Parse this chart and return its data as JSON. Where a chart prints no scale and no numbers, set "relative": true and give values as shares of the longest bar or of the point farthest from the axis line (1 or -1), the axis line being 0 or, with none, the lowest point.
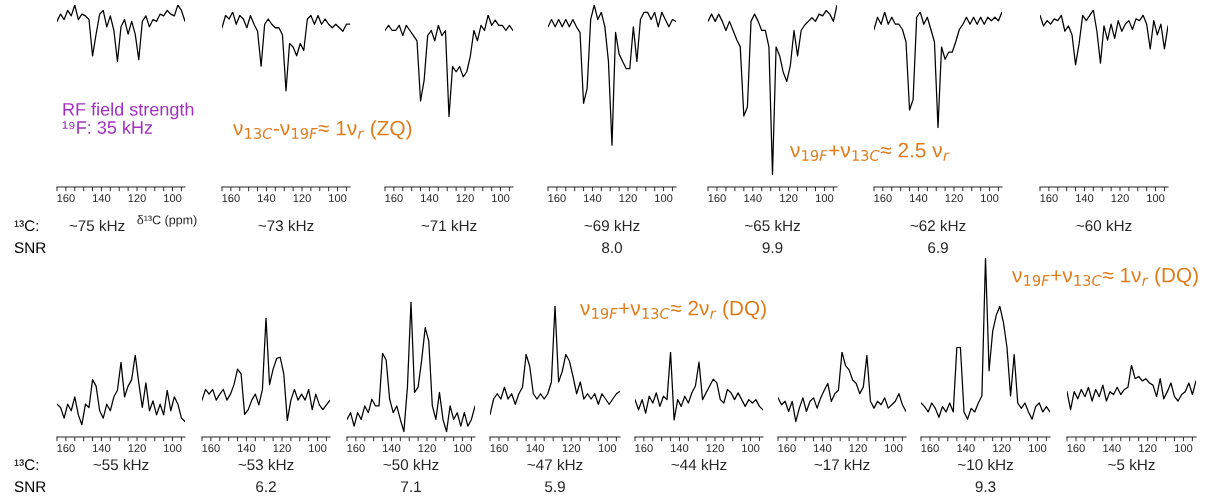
{
  "chart_data": [
    {
      "type": "line",
      "relative": true,
      "title": "~75 kHz",
      "xlabel": "δ¹³C (ppm)",
      "xlim": [
        165,
        93
      ],
      "annotations": [
        "RF field strength\n¹⁹F: 35 kHz",
        "ν$_{13C}$-ν$_{19F}$≈ 1ν$_{r}$ (ZQ)",
        "¹³C:",
        "SNR"
      ],
      "xticks": [
        {
          "value": 165,
          "label": null
        },
        160,
        {
          "value": 155,
          "label": null
        },
        {
          "value": 150,
          "label": null
        },
        {
          "value": 145,
          "label": null
        },
        140,
        {
          "value": 135,
          "label": null
        },
        {
          "value": 130,
          "label": null
        },
        {
          "value": 125,
          "label": null
        },
        120,
        {
          "value": 115,
          "label": null
        },
        {
          "value": 110,
          "label": null
        },
        {
          "value": 105,
          "label": null
        },
        100,
        {
          "value": 95,
          "label": null
        }
      ],
      "x": [
        165,
        163,
        161,
        159,
        157,
        155,
        153,
        151,
        149,
        147,
        145,
        143,
        141,
        139,
        137,
        135,
        133,
        131,
        129,
        127,
        125,
        123,
        121,
        119,
        117,
        115,
        113,
        111,
        109,
        107,
        105,
        103,
        101,
        99,
        97,
        95,
        93
      ],
      "series": [
        {
          "color": "#000000",
          "values": [
            0.91,
            0.95,
            0.92,
            0.97,
            0.94,
            1.0,
            0.92,
            0.95,
            0.94,
            0.92,
            0.72,
            0.84,
            0.95,
            0.97,
            0.88,
            0.94,
            0.86,
            0.69,
            0.88,
            0.92,
            0.84,
            0.91,
            0.84,
            0.7,
            0.91,
            0.94,
            0.88,
            0.92,
            0.91,
            0.95,
            0.94,
            0.97,
            0.95,
            0.94,
            1.0,
            0.97,
            0.91
          ]
        }
      ]
    },
    {
      "type": "line",
      "relative": true,
      "title": "~73 kHz",
      "xlim": [
        165,
        93
      ],
      "xticks": [
        {
          "value": 165,
          "label": null
        },
        160,
        {
          "value": 155,
          "label": null
        },
        {
          "value": 150,
          "label": null
        },
        {
          "value": 145,
          "label": null
        },
        140,
        {
          "value": 135,
          "label": null
        },
        {
          "value": 130,
          "label": null
        },
        {
          "value": 125,
          "label": null
        },
        120,
        {
          "value": 115,
          "label": null
        },
        {
          "value": 110,
          "label": null
        },
        {
          "value": 105,
          "label": null
        },
        100,
        {
          "value": 95,
          "label": null
        }
      ],
      "x": [
        165,
        163,
        161,
        159,
        157,
        155,
        153,
        151,
        149,
        147,
        145,
        143,
        141,
        139,
        137,
        135,
        133,
        131,
        129,
        127,
        125,
        123,
        121,
        119,
        117,
        115,
        113,
        111,
        109,
        107,
        105,
        103,
        101,
        99,
        97,
        95,
        93
      ],
      "series": [
        {
          "color": "#000000",
          "values": [
            0.91,
            0.98,
            0.96,
            1.0,
            0.93,
            0.98,
            0.96,
            0.91,
            0.98,
            0.93,
            0.89,
            0.69,
            0.93,
            0.96,
            0.93,
            0.91,
            0.91,
            0.87,
            0.55,
            0.82,
            0.8,
            0.75,
            0.82,
            0.78,
            0.96,
            0.98,
            0.93,
            0.98,
            0.93,
            0.96,
            0.93,
            0.91,
            0.93,
            0.91,
            0.89,
            0.93,
            0.93
          ]
        }
      ]
    },
    {
      "type": "line",
      "relative": true,
      "title": "~71 kHz",
      "xlim": [
        165,
        93
      ],
      "xticks": [
        {
          "value": 165,
          "label": null
        },
        160,
        {
          "value": 155,
          "label": null
        },
        {
          "value": 150,
          "label": null
        },
        {
          "value": 145,
          "label": null
        },
        140,
        {
          "value": 135,
          "label": null
        },
        {
          "value": 130,
          "label": null
        },
        {
          "value": 125,
          "label": null
        },
        120,
        {
          "value": 115,
          "label": null
        },
        {
          "value": 110,
          "label": null
        },
        {
          "value": 105,
          "label": null
        },
        100,
        {
          "value": 95,
          "label": null
        }
      ],
      "x": [
        165,
        163,
        161,
        159,
        157,
        155,
        153,
        151,
        149,
        147,
        145,
        143,
        141,
        139,
        137,
        135,
        133,
        131,
        129,
        127,
        125,
        123,
        121,
        119,
        117,
        115,
        113,
        111,
        109,
        107,
        105,
        103,
        101,
        99,
        97,
        95,
        93
      ],
      "series": [
        {
          "color": "#000000",
          "values": [
            0.91,
            0.94,
            0.91,
            0.91,
            0.94,
            0.88,
            0.94,
            0.91,
            0.88,
            0.85,
            0.5,
            0.62,
            0.88,
            0.91,
            0.85,
            0.94,
            0.88,
            0.91,
            0.41,
            0.7,
            0.67,
            0.7,
            0.64,
            0.67,
            0.76,
            0.91,
            0.85,
            0.94,
            0.91,
            1.0,
            0.94,
            0.97,
            0.94,
            0.94,
            0.91,
            0.94,
            0.91
          ]
        }
      ]
    },
    {
      "type": "line",
      "relative": true,
      "title": "~69 kHz",
      "subtitle": "8.0",
      "xlim": [
        165,
        93
      ],
      "xticks": [
        {
          "value": 165,
          "label": null
        },
        160,
        {
          "value": 155,
          "label": null
        },
        {
          "value": 150,
          "label": null
        },
        {
          "value": 145,
          "label": null
        },
        140,
        {
          "value": 135,
          "label": null
        },
        {
          "value": 130,
          "label": null
        },
        {
          "value": 125,
          "label": null
        },
        120,
        {
          "value": 115,
          "label": null
        },
        {
          "value": 110,
          "label": null
        },
        {
          "value": 105,
          "label": null
        },
        100,
        {
          "value": 95,
          "label": null
        }
      ],
      "x": [
        165,
        163,
        161,
        159,
        157,
        155,
        153,
        151,
        149,
        147,
        145,
        143,
        141,
        139,
        137,
        135,
        133,
        131,
        129,
        127,
        125,
        123,
        121,
        119,
        117,
        115,
        113,
        111,
        109,
        107,
        105,
        103,
        101,
        99,
        97,
        95,
        93
      ],
      "series": [
        {
          "color": "#000000",
          "values": [
            0.88,
            0.92,
            0.88,
            0.92,
            0.88,
            0.92,
            0.88,
            0.92,
            0.88,
            0.85,
            0.46,
            0.54,
            0.92,
            1.0,
            0.92,
            0.96,
            0.88,
            0.69,
            0.23,
            0.85,
            0.73,
            0.69,
            0.65,
            0.65,
            0.88,
            0.69,
            0.92,
            0.96,
            0.96,
            0.92,
            0.96,
            0.88,
            0.96,
            0.92,
            0.88,
            0.92,
            0.91
          ]
        }
      ]
    },
    {
      "type": "line",
      "relative": true,
      "title": "~65 kHz",
      "subtitle": "9.9",
      "xlim": [
        165,
        93
      ],
      "annotations": [
        "ν$_{19F}$+ν$_{13C}$≈ 2.5 ν$_{r}$"
      ],
      "xticks": [
        {
          "value": 165,
          "label": null
        },
        160,
        {
          "value": 155,
          "label": null
        },
        {
          "value": 150,
          "label": null
        },
        {
          "value": 145,
          "label": null
        },
        140,
        {
          "value": 135,
          "label": null
        },
        {
          "value": 130,
          "label": null
        },
        {
          "value": 125,
          "label": null
        },
        120,
        {
          "value": 115,
          "label": null
        },
        {
          "value": 110,
          "label": null
        },
        {
          "value": 105,
          "label": null
        },
        100,
        {
          "value": 95,
          "label": null
        }
      ],
      "x": [
        165,
        163,
        161,
        159,
        157,
        155,
        153,
        151,
        149,
        147,
        145,
        143,
        141,
        139,
        137,
        135,
        133,
        131,
        129,
        127,
        125,
        123,
        121,
        119,
        117,
        115,
        113,
        111,
        109,
        107,
        105,
        103,
        101,
        99,
        97,
        95,
        93
      ],
      "series": [
        {
          "color": "#000000",
          "values": [
            0.91,
            0.95,
            0.91,
            0.95,
            0.91,
            0.86,
            0.91,
            0.86,
            0.81,
            0.77,
            0.39,
            0.44,
            0.91,
            0.95,
            0.91,
            0.86,
            0.86,
            0.77,
            0.07,
            0.77,
            0.72,
            0.63,
            0.58,
            0.67,
            0.86,
            0.72,
            0.86,
            0.89,
            0.91,
            0.93,
            0.91,
            0.95,
            0.94,
            0.97,
            0.95,
            0.91,
            1.0
          ]
        }
      ]
    },
    {
      "type": "line",
      "relative": true,
      "title": "~62 kHz",
      "subtitle": "6.9",
      "xlim": [
        165,
        93
      ],
      "xticks": [
        {
          "value": 165,
          "label": null
        },
        160,
        {
          "value": 155,
          "label": null
        },
        {
          "value": 150,
          "label": null
        },
        {
          "value": 145,
          "label": null
        },
        140,
        {
          "value": 135,
          "label": null
        },
        {
          "value": 130,
          "label": null
        },
        {
          "value": 125,
          "label": null
        },
        120,
        {
          "value": 115,
          "label": null
        },
        {
          "value": 110,
          "label": null
        },
        {
          "value": 105,
          "label": null
        },
        100,
        {
          "value": 95,
          "label": null
        }
      ],
      "x": [
        165,
        163,
        161,
        159,
        157,
        155,
        153,
        151,
        149,
        147,
        145,
        143,
        141,
        139,
        137,
        135,
        133,
        131,
        129,
        127,
        125,
        123,
        121,
        119,
        117,
        115,
        113,
        111,
        109,
        107,
        105,
        103,
        101,
        99,
        97,
        95,
        93
      ],
      "series": [
        {
          "color": "#000000",
          "values": [
            0.9,
            0.97,
            0.93,
            1.0,
            0.93,
            0.97,
            0.93,
            0.93,
            0.9,
            0.83,
            0.44,
            0.5,
            0.97,
            1.0,
            0.93,
            0.97,
            0.9,
            0.83,
            0.34,
            0.8,
            0.73,
            0.77,
            0.77,
            0.83,
            0.9,
            0.93,
            0.97,
            0.93,
            0.97,
            0.93,
            0.97,
            0.93,
            0.97,
            0.95,
            0.97,
            0.95,
            1.0
          ]
        }
      ]
    },
    {
      "type": "line",
      "relative": true,
      "title": "~60 kHz",
      "xlim": [
        165,
        93
      ],
      "xticks": [
        {
          "value": 165,
          "label": null
        },
        160,
        {
          "value": 155,
          "label": null
        },
        {
          "value": 150,
          "label": null
        },
        {
          "value": 145,
          "label": null
        },
        140,
        {
          "value": 135,
          "label": null
        },
        {
          "value": 130,
          "label": null
        },
        {
          "value": 125,
          "label": null
        },
        120,
        {
          "value": 115,
          "label": null
        },
        {
          "value": 110,
          "label": null
        },
        {
          "value": 105,
          "label": null
        },
        100,
        {
          "value": 95,
          "label": null
        }
      ],
      "x": [
        165,
        163,
        161,
        159,
        157,
        155,
        153,
        151,
        149,
        147,
        145,
        143,
        141,
        139,
        137,
        135,
        133,
        131,
        129,
        127,
        125,
        123,
        121,
        119,
        117,
        115,
        113,
        111,
        109,
        107,
        105,
        103,
        101,
        99,
        97,
        95,
        93
      ],
      "series": [
        {
          "color": "#000000",
          "values": [
            0.97,
            0.91,
            0.94,
            0.92,
            0.95,
            0.94,
            0.97,
            0.88,
            0.91,
            0.86,
            0.69,
            0.81,
            0.97,
            0.94,
            0.97,
            1.0,
            0.88,
            0.7,
            0.91,
            0.83,
            0.92,
            0.84,
            0.94,
            0.88,
            0.92,
            0.94,
            0.89,
            0.95,
            0.94,
            0.97,
            0.92,
            0.78,
            0.94,
            0.86,
            0.92,
            0.78,
            0.91
          ]
        }
      ]
    },
    {
      "type": "line",
      "relative": true,
      "title": "~55 kHz",
      "xlim": [
        165,
        93
      ],
      "annotations": [
        "¹³C:",
        "SNR"
      ],
      "xticks": [
        {
          "value": 165,
          "label": null
        },
        160,
        {
          "value": 155,
          "label": null
        },
        {
          "value": 150,
          "label": null
        },
        {
          "value": 145,
          "label": null
        },
        140,
        {
          "value": 135,
          "label": null
        },
        {
          "value": 130,
          "label": null
        },
        {
          "value": 125,
          "label": null
        },
        120,
        {
          "value": 115,
          "label": null
        },
        {
          "value": 110,
          "label": null
        },
        {
          "value": 105,
          "label": null
        },
        100,
        {
          "value": 95,
          "label": null
        }
      ],
      "x": [
        165,
        163,
        161,
        159,
        157,
        155,
        153,
        151,
        149,
        147,
        145,
        143,
        141,
        139,
        137,
        135,
        133,
        131,
        129,
        127,
        125,
        123,
        121,
        119,
        117,
        115,
        113,
        111,
        109,
        107,
        105,
        103,
        101,
        99,
        97,
        95,
        93
      ],
      "series": [
        {
          "color": "#000000",
          "values": [
            0.4,
            0.36,
            0.23,
            0.4,
            0.32,
            0.49,
            0.27,
            0.15,
            0.4,
            0.36,
            0.7,
            0.62,
            0.32,
            0.23,
            0.4,
            0.32,
            0.49,
            0.57,
            0.91,
            0.49,
            0.62,
            0.7,
            1.0,
            0.66,
            0.36,
            0.66,
            0.32,
            0.44,
            0.27,
            0.4,
            0.27,
            0.57,
            0.32,
            0.49,
            0.4,
            0.23,
            0.19
          ]
        }
      ]
    },
    {
      "type": "line",
      "relative": true,
      "title": "~53 kHz",
      "subtitle": "6.2",
      "xlim": [
        165,
        93
      ],
      "xticks": [
        {
          "value": 165,
          "label": null
        },
        160,
        {
          "value": 155,
          "label": null
        },
        {
          "value": 150,
          "label": null
        },
        {
          "value": 145,
          "label": null
        },
        140,
        {
          "value": 135,
          "label": null
        },
        {
          "value": 130,
          "label": null
        },
        {
          "value": 125,
          "label": null
        },
        120,
        {
          "value": 115,
          "label": null
        },
        {
          "value": 110,
          "label": null
        },
        {
          "value": 105,
          "label": null
        },
        100,
        {
          "value": 95,
          "label": null
        }
      ],
      "x": [
        165,
        163,
        161,
        159,
        157,
        155,
        153,
        151,
        149,
        147,
        145,
        143,
        141,
        139,
        137,
        135,
        133,
        131,
        129,
        127,
        125,
        123,
        121,
        119,
        117,
        115,
        113,
        111,
        109,
        107,
        105,
        103,
        101,
        99,
        97,
        95,
        93
      ],
      "series": [
        {
          "color": "#000000",
          "values": [
            0.31,
            0.4,
            0.36,
            0.4,
            0.31,
            0.36,
            0.4,
            0.31,
            0.36,
            0.44,
            0.57,
            0.53,
            0.19,
            0.23,
            0.31,
            0.36,
            0.27,
            0.4,
            1.0,
            0.44,
            0.57,
            0.66,
            0.67,
            0.53,
            0.14,
            0.31,
            0.4,
            0.31,
            0.36,
            0.31,
            0.4,
            0.23,
            0.36,
            0.27,
            0.23,
            0.27,
            0.31
          ]
        }
      ]
    },
    {
      "type": "line",
      "relative": true,
      "title": "~50 kHz",
      "subtitle": "7.1",
      "xlim": [
        165,
        93
      ],
      "xticks": [
        {
          "value": 165,
          "label": null
        },
        160,
        {
          "value": 155,
          "label": null
        },
        {
          "value": 150,
          "label": null
        },
        {
          "value": 145,
          "label": null
        },
        140,
        {
          "value": 135,
          "label": null
        },
        {
          "value": 130,
          "label": null
        },
        {
          "value": 125,
          "label": null
        },
        120,
        {
          "value": 115,
          "label": null
        },
        {
          "value": 110,
          "label": null
        },
        {
          "value": 105,
          "label": null
        },
        100,
        {
          "value": 95,
          "label": null
        }
      ],
      "x": [
        165,
        163,
        161,
        159,
        157,
        155,
        153,
        151,
        149,
        147,
        145,
        143,
        141,
        139,
        137,
        135,
        133,
        131,
        129,
        127,
        125,
        123,
        121,
        119,
        117,
        115,
        113,
        111,
        109,
        107,
        105,
        103,
        101,
        99,
        97,
        95,
        93
      ],
      "series": [
        {
          "color": "#000000",
          "values": [
            0.13,
            0.18,
            0.08,
            0.18,
            0.13,
            0.23,
            0.18,
            0.28,
            0.23,
            0.23,
            0.62,
            0.57,
            0.28,
            0.18,
            0.23,
            0.13,
            0.04,
            0.37,
            1.0,
            0.33,
            0.37,
            0.57,
            0.81,
            0.71,
            0.23,
            0.13,
            0.33,
            0.13,
            0.04,
            0.23,
            0.13,
            0.18,
            0.08,
            0.18,
            0.08,
            0.13,
            0.23
          ]
        }
      ]
    },
    {
      "type": "line",
      "relative": true,
      "title": "~47 kHz",
      "subtitle": "5.9",
      "xlim": [
        165,
        93
      ],
      "annotations": [
        "ν$_{19F}$+ν$_{13C}$≈ 2ν$_{r}$ (DQ)"
      ],
      "xticks": [
        {
          "value": 165,
          "label": null
        },
        160,
        {
          "value": 155,
          "label": null
        },
        {
          "value": 150,
          "label": null
        },
        {
          "value": 145,
          "label": null
        },
        140,
        {
          "value": 135,
          "label": null
        },
        {
          "value": 130,
          "label": null
        },
        {
          "value": 125,
          "label": null
        },
        120,
        {
          "value": 115,
          "label": null
        },
        {
          "value": 110,
          "label": null
        },
        {
          "value": 105,
          "label": null
        },
        100,
        {
          "value": 95,
          "label": null
        }
      ],
      "x": [
        165,
        163,
        161,
        159,
        157,
        155,
        153,
        151,
        149,
        147,
        145,
        143,
        141,
        139,
        137,
        135,
        133,
        131,
        129,
        127,
        125,
        123,
        121,
        119,
        117,
        115,
        113,
        111,
        109,
        107,
        105,
        103,
        101,
        99,
        97,
        95,
        93
      ],
      "series": [
        {
          "color": "#000000",
          "values": [
            0.17,
            0.29,
            0.33,
            0.29,
            0.38,
            0.29,
            0.33,
            0.25,
            0.33,
            0.38,
            0.63,
            0.54,
            0.33,
            0.29,
            0.33,
            0.29,
            0.33,
            0.42,
            1.0,
            0.42,
            0.5,
            0.63,
            0.58,
            0.46,
            0.33,
            0.42,
            0.29,
            0.33,
            0.29,
            0.33,
            0.25,
            0.33,
            0.29,
            0.25,
            0.29,
            0.33,
            0.35
          ]
        }
      ]
    },
    {
      "type": "line",
      "relative": true,
      "title": "~44 kHz",
      "xlim": [
        165,
        93
      ],
      "xticks": [
        {
          "value": 165,
          "label": null
        },
        160,
        {
          "value": 155,
          "label": null
        },
        {
          "value": 150,
          "label": null
        },
        {
          "value": 145,
          "label": null
        },
        140,
        {
          "value": 135,
          "label": null
        },
        {
          "value": 130,
          "label": null
        },
        {
          "value": 125,
          "label": null
        },
        120,
        {
          "value": 115,
          "label": null
        },
        {
          "value": 110,
          "label": null
        },
        {
          "value": 105,
          "label": null
        },
        100,
        {
          "value": 95,
          "label": null
        }
      ],
      "x": [
        165,
        163,
        161,
        159,
        157,
        155,
        153,
        151,
        149,
        147,
        145,
        143,
        141,
        139,
        137,
        135,
        133,
        131,
        129,
        127,
        125,
        123,
        121,
        119,
        117,
        115,
        113,
        111,
        109,
        107,
        105,
        103,
        101,
        99,
        97,
        95,
        93
      ],
      "series": [
        {
          "color": "#000000",
          "values": [
            0.44,
            0.32,
            0.44,
            0.28,
            0.48,
            0.4,
            0.52,
            0.36,
            0.48,
            0.44,
            1.0,
            0.2,
            0.44,
            0.36,
            0.48,
            0.4,
            0.52,
            0.6,
            0.88,
            0.44,
            0.52,
            0.6,
            0.68,
            0.64,
            0.44,
            0.4,
            0.56,
            0.52,
            0.44,
            0.52,
            0.44,
            0.36,
            0.44,
            0.4,
            0.44,
            0.36,
            0.32
          ]
        }
      ]
    },
    {
      "type": "line",
      "relative": true,
      "title": "~17 kHz",
      "xlim": [
        165,
        93
      ],
      "xticks": [
        {
          "value": 165,
          "label": null
        },
        160,
        {
          "value": 155,
          "label": null
        },
        {
          "value": 150,
          "label": null
        },
        {
          "value": 145,
          "label": null
        },
        140,
        {
          "value": 135,
          "label": null
        },
        {
          "value": 130,
          "label": null
        },
        {
          "value": 125,
          "label": null
        },
        120,
        {
          "value": 115,
          "label": null
        },
        {
          "value": 110,
          "label": null
        },
        {
          "value": 105,
          "label": null
        },
        100,
        {
          "value": 95,
          "label": null
        }
      ],
      "x": [
        165,
        163,
        161,
        159,
        157,
        155,
        153,
        151,
        149,
        147,
        145,
        143,
        141,
        139,
        137,
        135,
        133,
        131,
        129,
        127,
        125,
        123,
        121,
        119,
        117,
        115,
        113,
        111,
        109,
        107,
        105,
        103,
        101,
        99,
        97,
        95,
        93
      ],
      "series": [
        {
          "color": "#000000",
          "values": [
            0.46,
            0.38,
            0.42,
            0.3,
            0.42,
            0.18,
            0.34,
            0.46,
            0.3,
            0.42,
            0.46,
            0.34,
            0.46,
            0.55,
            0.63,
            0.42,
            0.51,
            0.55,
            1.0,
            0.84,
            0.79,
            0.67,
            0.63,
            0.51,
            0.59,
            0.96,
            0.42,
            0.34,
            0.42,
            0.38,
            0.46,
            0.34,
            0.38,
            0.42,
            0.51,
            0.38,
            0.3
          ]
        }
      ]
    },
    {
      "type": "line",
      "relative": true,
      "title": "~10 kHz",
      "subtitle": "9.3",
      "xlim": [
        165,
        93
      ],
      "annotations": [
        "ν$_{19F}$+ν$_{13C}$≈ 1ν$_{r}$ (DQ)"
      ],
      "xticks": [
        {
          "value": 165,
          "label": null
        },
        160,
        {
          "value": 155,
          "label": null
        },
        {
          "value": 150,
          "label": null
        },
        {
          "value": 145,
          "label": null
        },
        140,
        {
          "value": 135,
          "label": null
        },
        {
          "value": 130,
          "label": null
        },
        {
          "value": 125,
          "label": null
        },
        120,
        {
          "value": 115,
          "label": null
        },
        {
          "value": 110,
          "label": null
        },
        {
          "value": 105,
          "label": null
        },
        100,
        {
          "value": 95,
          "label": null
        }
      ],
      "x": [
        165,
        163,
        161,
        159,
        157,
        155,
        153,
        151,
        149,
        147,
        145,
        143,
        141,
        139,
        137,
        135,
        133,
        131,
        129,
        127,
        125,
        123,
        121,
        119,
        117,
        115,
        113,
        111,
        109,
        107,
        105,
        103,
        101,
        99,
        97,
        95,
        93
      ],
      "series": [
        {
          "color": "#000000",
          "values": [
            0.19,
            0.17,
            0.14,
            0.19,
            0.16,
            0.11,
            0.17,
            0.14,
            0.19,
            0.14,
            0.5,
            0.5,
            0.14,
            0.1,
            0.16,
            0.14,
            0.19,
            0.23,
            1.0,
            0.37,
            0.59,
            0.68,
            0.73,
            0.64,
            0.5,
            0.23,
            0.46,
            0.19,
            0.16,
            0.19,
            0.14,
            0.1,
            0.17,
            0.19,
            0.14,
            0.17,
            0.14
          ]
        }
      ]
    },
    {
      "type": "line",
      "relative": true,
      "title": "~5 kHz",
      "xlim": [
        165,
        93
      ],
      "xticks": [
        {
          "value": 165,
          "label": null
        },
        160,
        {
          "value": 155,
          "label": null
        },
        {
          "value": 150,
          "label": null
        },
        {
          "value": 145,
          "label": null
        },
        140,
        {
          "value": 135,
          "label": null
        },
        {
          "value": 130,
          "label": null
        },
        {
          "value": 125,
          "label": null
        },
        120,
        {
          "value": 115,
          "label": null
        },
        {
          "value": 110,
          "label": null
        },
        {
          "value": 105,
          "label": null
        },
        100,
        {
          "value": 95,
          "label": null
        }
      ],
      "x": [
        165,
        163,
        161,
        159,
        157,
        155,
        153,
        151,
        149,
        147,
        145,
        143,
        141,
        139,
        137,
        135,
        133,
        131,
        129,
        127,
        125,
        123,
        121,
        119,
        117,
        115,
        113,
        111,
        109,
        107,
        105,
        103,
        101,
        99,
        97,
        95,
        93
      ],
      "series": [
        {
          "color": "#000000",
          "values": [
            0.63,
            0.38,
            0.63,
            0.53,
            0.66,
            0.56,
            0.69,
            0.5,
            0.66,
            0.56,
            0.72,
            0.5,
            0.63,
            0.59,
            0.69,
            0.59,
            0.66,
            0.69,
            1.0,
            0.81,
            0.84,
            0.78,
            0.81,
            0.75,
            0.72,
            0.56,
            0.81,
            0.53,
            0.63,
            0.75,
            0.56,
            0.5,
            0.59,
            0.63,
            0.75,
            0.59,
            0.78
          ]
        }
      ]
    }
  ]
}
